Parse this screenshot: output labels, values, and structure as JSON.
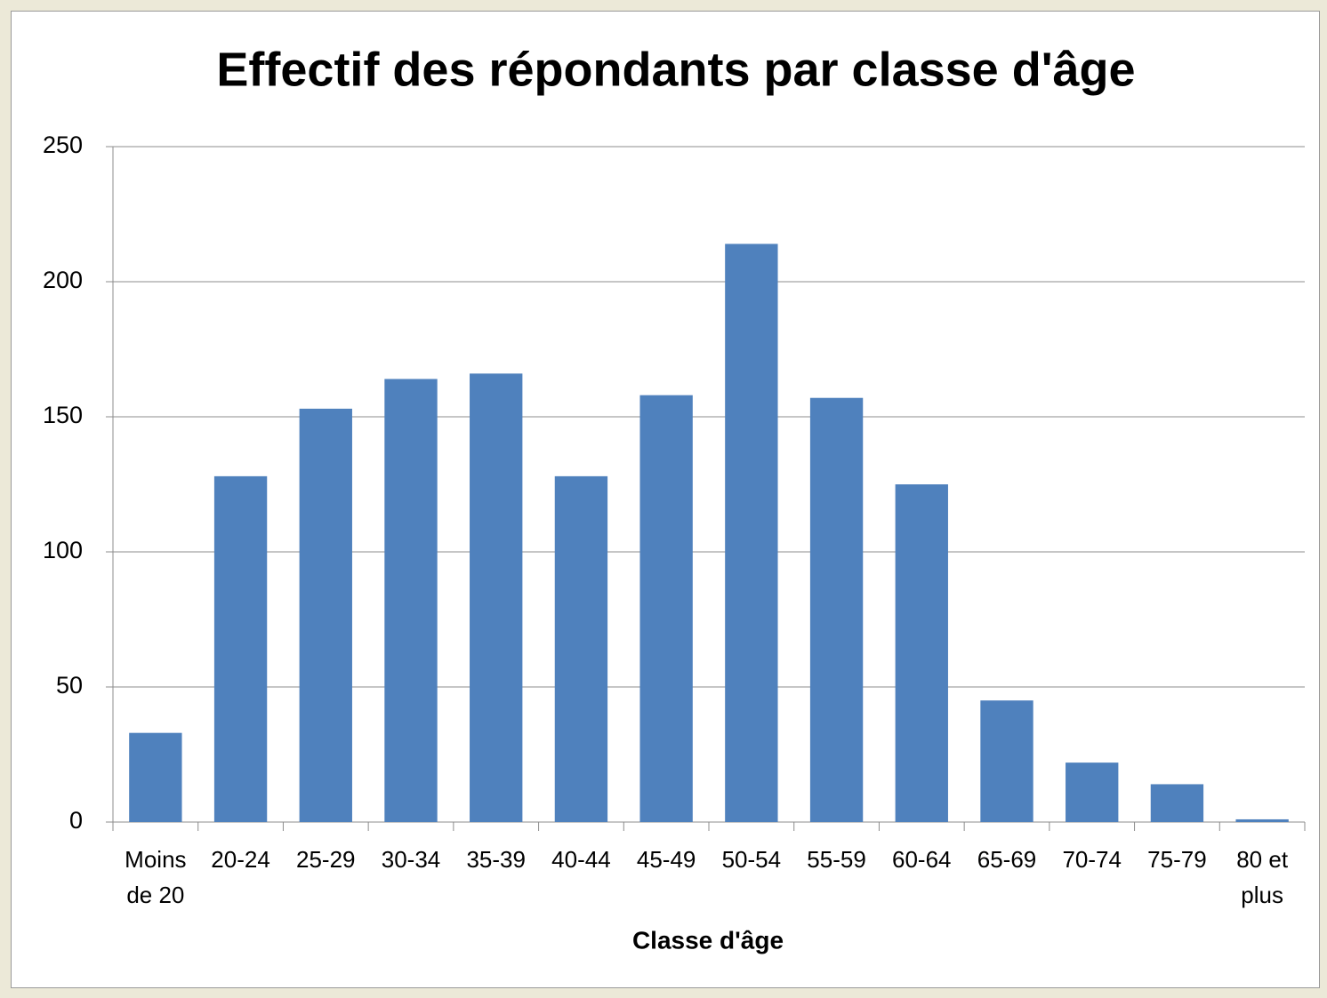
{
  "chart_data": {
    "type": "bar",
    "title": "Effectif des répondants par classe d'âge",
    "x_label": "Classe d'âge",
    "categories": [
      "Moins de 20",
      "20-24",
      "25-29",
      "30-34",
      "35-39",
      "40-44",
      "45-49",
      "50-54",
      "55-59",
      "60-64",
      "65-69",
      "70-74",
      "75-79",
      "80 et plus"
    ],
    "values": [
      33,
      128,
      153,
      164,
      166,
      128,
      158,
      214,
      157,
      125,
      45,
      22,
      14,
      1
    ],
    "color": "#4f81bd",
    "ylim": [
      0,
      250
    ],
    "yticks": [
      0,
      50,
      100,
      150,
      200,
      250
    ],
    "grid": true
  }
}
